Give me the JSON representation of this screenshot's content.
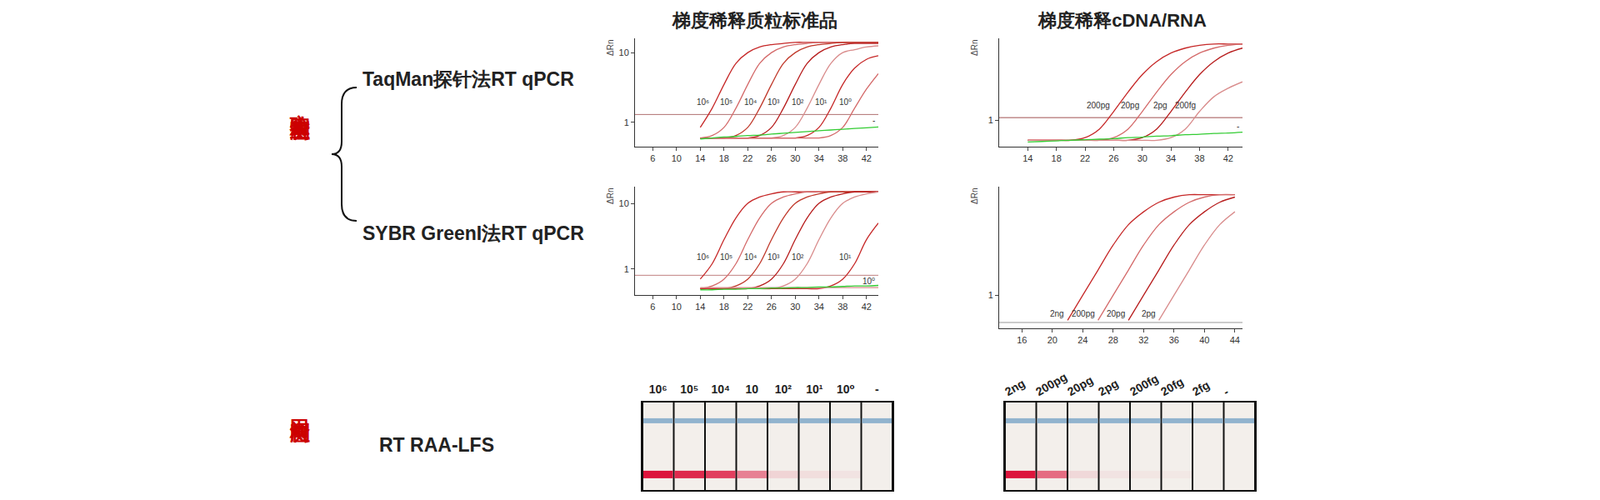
{
  "column_titles": [
    "梯度稀释质粒标准品",
    "梯度稀释cDNA/RNA"
  ],
  "row_groups": [
    {
      "label": "实验室检测",
      "rows": [
        "TaqMan探针法RT qPCR",
        "SYBR GreenI法RT qPCR"
      ]
    },
    {
      "label": "田间检测",
      "rows": [
        "RT RAA-LFS"
      ]
    }
  ],
  "chart_data": [
    {
      "type": "line",
      "log": "y",
      "ylabel": "ΔRn",
      "x": [
        14,
        16,
        18,
        20,
        22,
        24,
        26,
        28,
        30,
        32,
        34,
        36,
        38,
        40,
        42,
        44
      ],
      "xlim": [
        3,
        44
      ],
      "xticks": [
        6,
        10,
        14,
        18,
        22,
        26,
        30,
        34,
        38,
        42
      ],
      "ylim": [
        0.45,
        16
      ],
      "yticks": [
        1,
        10
      ],
      "threshold": {
        "value": 1.3,
        "color": "#b07070"
      },
      "series": [
        {
          "name": "10⁶",
          "color": "#c62828",
          "values": [
            0.85,
            1.6,
            3.5,
            7,
            10,
            12,
            13,
            13.5,
            14,
            14,
            14,
            14,
            14,
            14,
            14,
            14
          ]
        },
        {
          "name": "10⁵",
          "color": "#d46a6a",
          "values": [
            0.6,
            0.65,
            0.85,
            1.6,
            3.5,
            7,
            10,
            12,
            13,
            13.5,
            14,
            14,
            14,
            14,
            14,
            14
          ]
        },
        {
          "name": "10⁴",
          "color": "#c0392b",
          "values": [
            0.6,
            0.6,
            0.6,
            0.65,
            0.85,
            1.6,
            3.5,
            7,
            10,
            12,
            13,
            13.5,
            14,
            14,
            14,
            14
          ]
        },
        {
          "name": "10³",
          "color": "#b71c1c",
          "values": [
            0.6,
            0.6,
            0.6,
            0.6,
            0.6,
            0.65,
            0.85,
            1.6,
            3.5,
            7,
            10,
            12,
            13,
            13.5,
            13.5,
            13.5
          ]
        },
        {
          "name": "10²",
          "color": "#d98c8c",
          "values": [
            0.6,
            0.6,
            0.6,
            0.6,
            0.6,
            0.6,
            0.6,
            0.65,
            0.85,
            1.6,
            3.5,
            7,
            10,
            11,
            12,
            12.5
          ]
        },
        {
          "name": "10¹",
          "color": "#c62828",
          "values": [
            0.6,
            0.6,
            0.6,
            0.6,
            0.6,
            0.6,
            0.6,
            0.6,
            0.6,
            0.65,
            0.85,
            1.6,
            3.5,
            6,
            8,
            9
          ]
        },
        {
          "name": "10⁰",
          "color": "#d46a6a",
          "values": [
            0.6,
            0.6,
            0.6,
            0.6,
            0.6,
            0.6,
            0.6,
            0.6,
            0.6,
            0.6,
            0.6,
            0.65,
            0.85,
            1.6,
            3,
            5
          ]
        },
        {
          "name": "-",
          "color": "#33cc33",
          "values": [
            0.58,
            0.6,
            0.62,
            0.63,
            0.65,
            0.66,
            0.68,
            0.7,
            0.72,
            0.74,
            0.76,
            0.78,
            0.8,
            0.82,
            0.84,
            0.86
          ]
        }
      ]
    },
    {
      "type": "line",
      "log": "y",
      "ylabel": "ΔRn",
      "x": [
        14,
        16,
        18,
        20,
        22,
        24,
        26,
        28,
        30,
        32,
        34,
        36,
        38,
        40,
        42,
        44
      ],
      "xlim": [
        10,
        44
      ],
      "xticks": [
        14,
        18,
        22,
        26,
        30,
        34,
        38,
        42
      ],
      "ylim": [
        0.35,
        25
      ],
      "yticks": [
        1
      ],
      "threshold": {
        "value": 1.1,
        "color": "#a05050"
      },
      "series": [
        {
          "name": "200pg",
          "color": "#c62828",
          "values": [
            0.45,
            0.45,
            0.45,
            0.45,
            0.5,
            0.7,
            1.4,
            3,
            6,
            10,
            14,
            17,
            19,
            20,
            20,
            20
          ]
        },
        {
          "name": "20pg",
          "color": "#d46a6a",
          "values": [
            0.45,
            0.45,
            0.45,
            0.45,
            0.45,
            0.45,
            0.5,
            0.7,
            1.4,
            3,
            6,
            10,
            14,
            17,
            19,
            20
          ]
        },
        {
          "name": "2pg",
          "color": "#b71c1c",
          "values": [
            0.45,
            0.45,
            0.45,
            0.45,
            0.45,
            0.45,
            0.45,
            0.45,
            0.5,
            0.7,
            1.4,
            3,
            6,
            10,
            14,
            17
          ]
        },
        {
          "name": "200fg",
          "color": "#d98c8c",
          "values": [
            0.45,
            0.45,
            0.45,
            0.45,
            0.45,
            0.45,
            0.45,
            0.45,
            0.45,
            0.45,
            0.5,
            0.7,
            1.4,
            2.5,
            3.5,
            4.5
          ]
        },
        {
          "name": "-",
          "color": "#33cc33",
          "values": [
            0.42,
            0.43,
            0.44,
            0.45,
            0.46,
            0.47,
            0.48,
            0.5,
            0.51,
            0.53,
            0.54,
            0.56,
            0.57,
            0.59,
            0.6,
            0.62
          ]
        }
      ]
    },
    {
      "type": "line",
      "log": "y",
      "ylabel": "ΔRn",
      "x": [
        14,
        16,
        18,
        20,
        22,
        24,
        26,
        28,
        30,
        32,
        34,
        36,
        38,
        40,
        42,
        44
      ],
      "xlim": [
        3,
        44
      ],
      "xticks": [
        6,
        10,
        14,
        18,
        22,
        26,
        30,
        34,
        38,
        42
      ],
      "ylim": [
        0.4,
        18
      ],
      "yticks": [
        1,
        10
      ],
      "threshold": {
        "value": 0.8,
        "color": "#c08080"
      },
      "series": [
        {
          "name": "10⁶",
          "color": "#c62828",
          "values": [
            0.7,
            1.2,
            2.8,
            6,
            10,
            12.5,
            14,
            15,
            15,
            15,
            15,
            15,
            15,
            15,
            15,
            15
          ]
        },
        {
          "name": "10⁵",
          "color": "#d46a6a",
          "values": [
            0.5,
            0.55,
            0.7,
            1.2,
            2.8,
            6,
            10,
            12.5,
            14,
            15,
            15,
            15,
            15,
            15,
            15,
            15
          ]
        },
        {
          "name": "10⁴",
          "color": "#c0392b",
          "values": [
            0.5,
            0.5,
            0.5,
            0.55,
            0.7,
            1.2,
            2.8,
            6,
            10,
            12.5,
            14,
            15,
            15,
            15,
            15,
            15
          ]
        },
        {
          "name": "10³",
          "color": "#b71c1c",
          "values": [
            0.5,
            0.5,
            0.5,
            0.5,
            0.5,
            0.55,
            0.7,
            1.2,
            2.8,
            6,
            10,
            12.5,
            14,
            15,
            15,
            15
          ]
        },
        {
          "name": "10²",
          "color": "#d98c8c",
          "values": [
            0.5,
            0.5,
            0.5,
            0.5,
            0.5,
            0.5,
            0.5,
            0.55,
            0.7,
            1.2,
            2.8,
            6,
            10,
            12.5,
            14,
            15
          ]
        },
        {
          "name": "10¹",
          "color": "#c62828",
          "values": [
            0.5,
            0.5,
            0.5,
            0.5,
            0.5,
            0.5,
            0.5,
            0.5,
            0.5,
            0.5,
            0.5,
            0.55,
            0.7,
            1.2,
            2.8,
            5
          ]
        },
        {
          "name": "10⁰",
          "color": "#d98c8c",
          "values": [
            0.52,
            0.52,
            0.52,
            0.52,
            0.52,
            0.52,
            0.52,
            0.52,
            0.52,
            0.52,
            0.52,
            0.52,
            0.52,
            0.52,
            0.52,
            0.52
          ]
        },
        {
          "color": "#33cc33",
          "values": [
            0.48,
            0.48,
            0.49,
            0.49,
            0.5,
            0.5,
            0.51,
            0.51,
            0.52,
            0.52,
            0.53,
            0.53,
            0.54,
            0.55,
            0.55,
            0.56
          ]
        }
      ]
    },
    {
      "type": "line",
      "log": "y",
      "ylabel": "ΔRn",
      "x": [
        16,
        18,
        20,
        22,
        24,
        26,
        28,
        30,
        32,
        34,
        36,
        38,
        40,
        42,
        44
      ],
      "xlim": [
        13,
        45
      ],
      "xticks": [
        16,
        20,
        24,
        28,
        32,
        36,
        40,
        44
      ],
      "ylim": [
        0.4,
        20
      ],
      "yticks": [
        1
      ],
      "threshold": {
        "value": 0.47,
        "color": "#999999"
      },
      "series": [
        {
          "name": "2ng",
          "color": "#c62828",
          "values": [
            null,
            null,
            null,
            0.5,
            1,
            2,
            4,
            7,
            10,
            13,
            15,
            16,
            16,
            16,
            16
          ]
        },
        {
          "name": "200pg",
          "color": "#d46a6a",
          "values": [
            null,
            null,
            null,
            null,
            null,
            0.5,
            1,
            2,
            4,
            7,
            10,
            13,
            15,
            16,
            16
          ]
        },
        {
          "name": "20pg",
          "color": "#b71c1c",
          "values": [
            null,
            null,
            null,
            null,
            null,
            null,
            null,
            0.5,
            1,
            2,
            4,
            7,
            10,
            13,
            15
          ]
        },
        {
          "name": "2pg",
          "color": "#d98c8c",
          "values": [
            null,
            null,
            null,
            null,
            null,
            null,
            null,
            null,
            null,
            0.5,
            1,
            2,
            4,
            7,
            10
          ]
        }
      ]
    }
  ],
  "strips": [
    {
      "labels": [
        "10⁶",
        "10⁵",
        "10⁴",
        "10",
        "10²",
        "10¹",
        "10⁰",
        "-"
      ],
      "test_line_intensity": [
        1,
        0.9,
        0.8,
        0.5,
        0.12,
        0.08,
        0.05,
        0
      ]
    },
    {
      "labels": [
        "2ng",
        "200pg",
        "20pg",
        "2pg",
        "200fg",
        "20fg",
        "2fg",
        "-"
      ],
      "test_line_intensity": [
        1,
        0.6,
        0.1,
        0.05,
        0.04,
        0.03,
        0,
        0
      ]
    }
  ]
}
